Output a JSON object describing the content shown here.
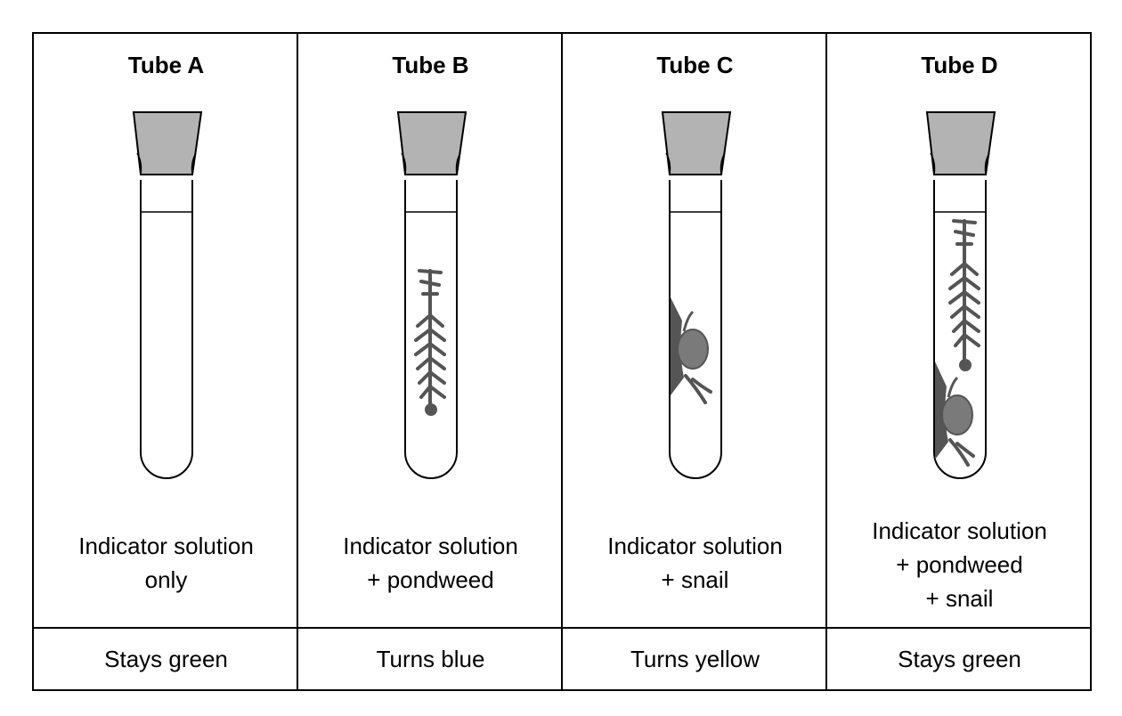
{
  "tubes": [
    {
      "title": "Tube A",
      "desc": [
        "Indicator solution",
        "only"
      ],
      "result": "Stays green",
      "contents": []
    },
    {
      "title": "Tube B",
      "desc": [
        "Indicator solution",
        "+ pondweed"
      ],
      "result": "Turns blue",
      "contents": [
        "pondweed"
      ]
    },
    {
      "title": "Tube C",
      "desc": [
        "Indicator solution",
        "+ snail"
      ],
      "result": "Turns yellow",
      "contents": [
        "snail"
      ]
    },
    {
      "title": "Tube D",
      "desc": [
        "Indicator solution",
        "+ pondweed",
        "+ snail"
      ],
      "result": "Stays green",
      "contents": [
        "pondweed",
        "snail"
      ]
    }
  ],
  "colors": {
    "stopper": "#b3b3b3",
    "organism": "#555555",
    "line": "#000000"
  }
}
